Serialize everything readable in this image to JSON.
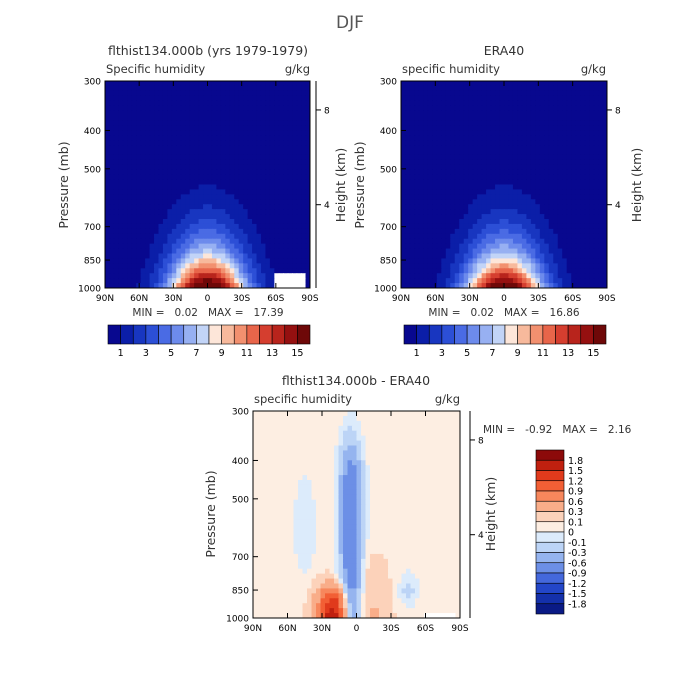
{
  "figure": {
    "season_title": "DJF"
  },
  "panels": [
    {
      "id": "model",
      "title": "flthist134.000b (yrs 1979-1979)",
      "left_label": "Specific humidity",
      "units": "g/kg",
      "ylabel": "Pressure (mb)",
      "ylabel_right": "Height (km)",
      "stats": "MIN =   0.02   MAX =   17.39"
    },
    {
      "id": "obs",
      "title": "ERA40",
      "left_label": "specific humidity",
      "units": "g/kg",
      "ylabel": "Pressure (mb)",
      "ylabel_right": "Height (km)",
      "stats": "MIN =   0.02   MAX =   16.86"
    },
    {
      "id": "diff",
      "title": "flthist134.000b - ERA40",
      "left_label": "specific humidity",
      "units": "g/kg",
      "ylabel": "Pressure (mb)",
      "ylabel_right": "Height (km)",
      "stats": "MIN =   -0.92   MAX =   2.16"
    }
  ],
  "chart_data": [
    {
      "type": "heatmap",
      "panel": "model",
      "title": "flthist134.000b (yrs 1979-1979)",
      "xlabel": "",
      "ylabel": "Pressure (mb)",
      "ylabel_right": "Height (km)",
      "x_ticks": [
        "90N",
        "60N",
        "30N",
        "0",
        "30S",
        "60S",
        "90S"
      ],
      "x_tick_values": [
        90,
        60,
        30,
        0,
        -30,
        -60,
        -90
      ],
      "y_ticks": [
        "300",
        "400",
        "500",
        "700",
        "850",
        "1000"
      ],
      "y_tick_values": [
        300,
        400,
        500,
        700,
        850,
        1000
      ],
      "y_scale": "log",
      "y_right_ticks": [
        "4",
        "8"
      ],
      "units": "g/kg",
      "min": 0.02,
      "max": 17.39,
      "field": {
        "peak_lat": 0,
        "peak_value": 17.39,
        "min_value": 0.02,
        "missing_region": "1000-925 mb, 60S-85S"
      },
      "colorbar": {
        "labels": [
          "1",
          "3",
          "5",
          "7",
          "9",
          "11",
          "13",
          "15"
        ],
        "levels": [
          1,
          2,
          3,
          4,
          5,
          6,
          7,
          8,
          9,
          10,
          11,
          12,
          13,
          14,
          15
        ],
        "colors": [
          "#08088f",
          "#0b1ea8",
          "#1836c0",
          "#2c4fd6",
          "#4a6be4",
          "#6d8bec",
          "#97b0f2",
          "#c2d4f7",
          "#fde6d9",
          "#f7b99c",
          "#f2906f",
          "#e8654a",
          "#d53e2f",
          "#b8241c",
          "#951010",
          "#6e0808"
        ]
      }
    },
    {
      "type": "heatmap",
      "panel": "obs",
      "title": "ERA40",
      "xlabel": "",
      "ylabel": "Pressure (mb)",
      "ylabel_right": "Height (km)",
      "x_ticks": [
        "90N",
        "60N",
        "30N",
        "0",
        "30S",
        "60S",
        "90S"
      ],
      "x_tick_values": [
        90,
        60,
        30,
        0,
        -30,
        -60,
        -90
      ],
      "y_ticks": [
        "300",
        "400",
        "500",
        "700",
        "850",
        "1000"
      ],
      "y_tick_values": [
        300,
        400,
        500,
        700,
        850,
        1000
      ],
      "y_scale": "log",
      "y_right_ticks": [
        "4",
        "8"
      ],
      "units": "g/kg",
      "min": 0.02,
      "max": 16.86,
      "field": {
        "peak_lat": 0,
        "peak_value": 16.86,
        "min_value": 0.02
      },
      "colorbar": {
        "labels": [
          "1",
          "3",
          "5",
          "7",
          "9",
          "11",
          "13",
          "15"
        ],
        "levels": [
          1,
          2,
          3,
          4,
          5,
          6,
          7,
          8,
          9,
          10,
          11,
          12,
          13,
          14,
          15
        ],
        "colors": [
          "#08088f",
          "#0b1ea8",
          "#1836c0",
          "#2c4fd6",
          "#4a6be4",
          "#6d8bec",
          "#97b0f2",
          "#c2d4f7",
          "#fde6d9",
          "#f7b99c",
          "#f2906f",
          "#e8654a",
          "#d53e2f",
          "#b8241c",
          "#951010",
          "#6e0808"
        ]
      }
    },
    {
      "type": "heatmap",
      "panel": "diff",
      "title": "flthist134.000b - ERA40",
      "xlabel": "",
      "ylabel": "Pressure (mb)",
      "ylabel_right": "Height (km)",
      "x_ticks": [
        "90N",
        "60N",
        "30N",
        "0",
        "30S",
        "60S",
        "90S"
      ],
      "x_tick_values": [
        90,
        60,
        30,
        0,
        -30,
        -60,
        -90
      ],
      "y_ticks": [
        "300",
        "400",
        "500",
        "700",
        "850",
        "1000"
      ],
      "y_tick_values": [
        300,
        400,
        500,
        700,
        850,
        1000
      ],
      "y_scale": "log",
      "y_right_ticks": [
        "4",
        "8"
      ],
      "units": "g/kg",
      "min": -0.92,
      "max": 2.16,
      "field": {
        "features": [
          {
            "lat": 20,
            "p_top": 900,
            "value": 1.8
          },
          {
            "lat": 5,
            "p_top": 450,
            "value": -0.9
          },
          {
            "lat": -15,
            "p_top": 750,
            "value": 0.3
          }
        ],
        "missing_region": "1000-960 mb, 60S-85S"
      },
      "colorbar": {
        "labels": [
          "1.8",
          "1.5",
          "1.2",
          "0.9",
          "0.6",
          "0.3",
          "0.1",
          "0",
          "-0.1",
          "-0.3",
          "-0.6",
          "-0.9",
          "-1.2",
          "-1.5",
          "-1.8"
        ],
        "levels": [
          1.8,
          1.5,
          1.2,
          0.9,
          0.6,
          0.3,
          0.1,
          0,
          -0.1,
          -0.3,
          -0.6,
          -0.9,
          -1.2,
          -1.5,
          -1.8
        ],
        "colors": [
          "#8c0a0a",
          "#c0200f",
          "#e03a1c",
          "#f25f35",
          "#f7875c",
          "#f9ad89",
          "#fcd2ba",
          "#fdeee2",
          "#dcebfb",
          "#bcd4f6",
          "#95b4ef",
          "#6c8fe6",
          "#4468dc",
          "#2346c8",
          "#1430aa",
          "#0a1a85"
        ]
      }
    }
  ]
}
